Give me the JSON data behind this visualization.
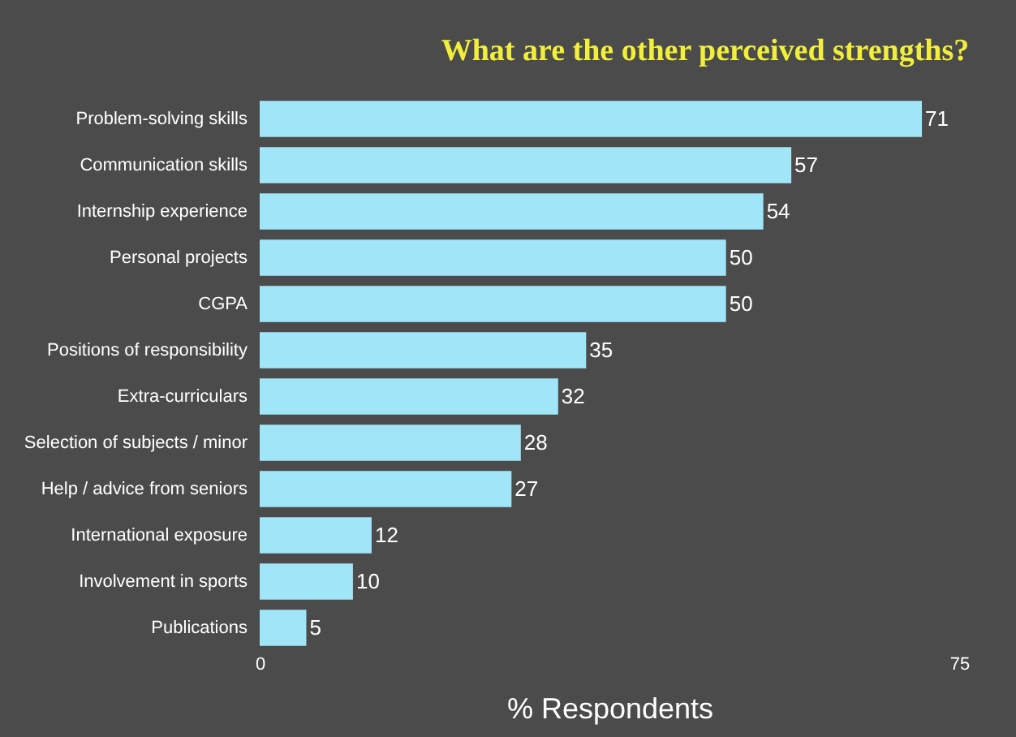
{
  "chart_data": {
    "type": "bar",
    "orientation": "horizontal",
    "title": "What are the other perceived strengths?",
    "xlabel": "% Respondents",
    "categories": [
      "Problem-solving skills",
      "Communication skills",
      "Internship experience",
      "Personal projects",
      "CGPA",
      "Positions of responsibility",
      "Extra-curriculars",
      "Selection of subjects / minor",
      "Help / advice from seniors",
      "International exposure",
      "Involvement in sports",
      "Publications"
    ],
    "values": [
      71,
      57,
      54,
      50,
      50,
      35,
      32,
      28,
      27,
      12,
      10,
      5
    ],
    "color": "#a0e6f8",
    "xlim": [
      0,
      75
    ],
    "xticks": [
      0,
      75
    ],
    "data_labels": true,
    "grid": false
  }
}
